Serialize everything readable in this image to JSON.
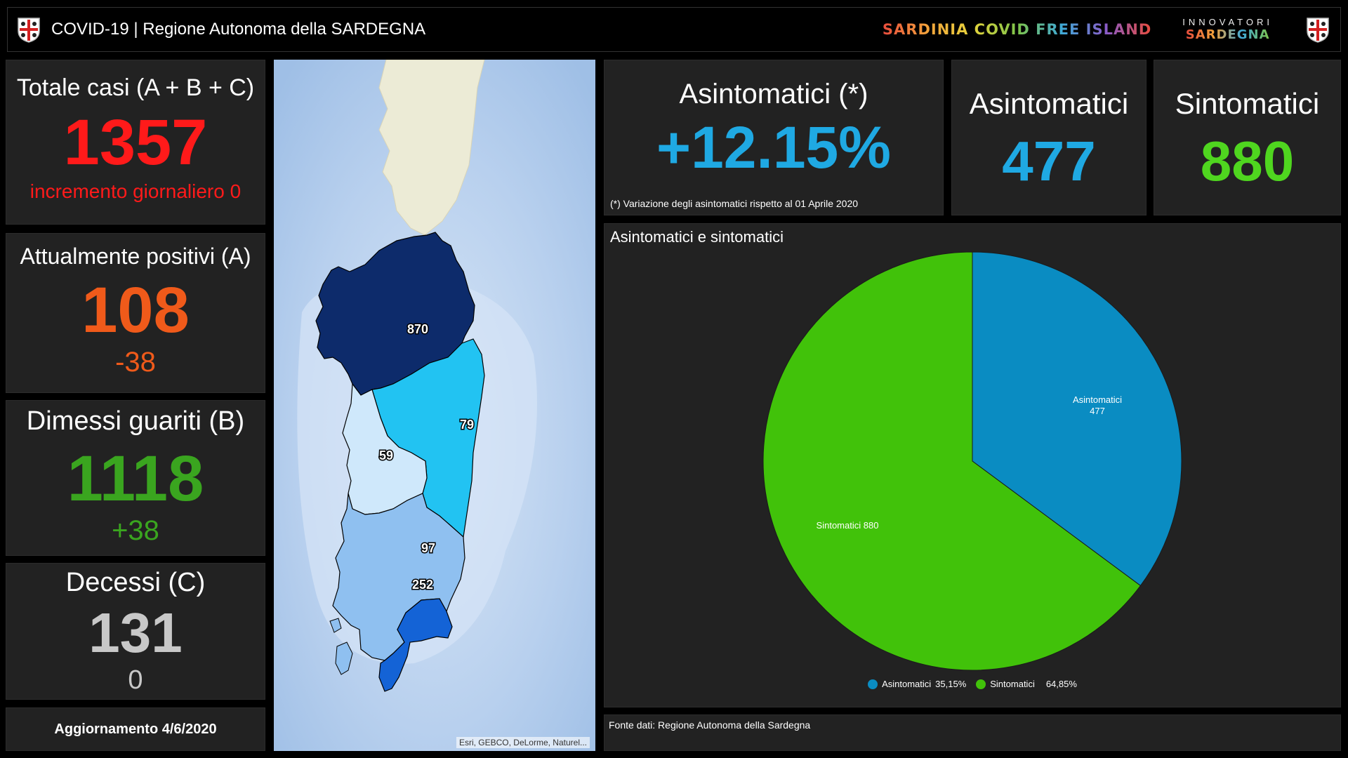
{
  "header": {
    "title": "COVID-19 | Regione Autonoma della SARDEGNA",
    "slogan": "SARDINIA COVID FREE ISLAND",
    "innovatori_line1": "INNOVATORI",
    "innovatori_line2": "SARDEGNA"
  },
  "stats": {
    "totale": {
      "label": "Totale casi (A + B + C)",
      "value": "1357",
      "sub": "incremento giornaliero 0",
      "color": "#ff1a1a"
    },
    "positivi": {
      "label": "Attualmente positivi (A)",
      "value": "108",
      "sub": "-38",
      "color": "#f05a1a"
    },
    "guariti": {
      "label": "Dimessi guariti (B)",
      "value": "1118",
      "sub": "+38",
      "color": "#3aa51f"
    },
    "decessi": {
      "label": "Decessi (C)",
      "value": "131",
      "sub": "0",
      "color": "#c8c8c8"
    }
  },
  "update": "Aggiornamento 4/6/2020",
  "map": {
    "attribution": "Esri, GEBCO, DeLorme, Naturel...",
    "regions": [
      {
        "label": "870",
        "color": "#0d2b6b"
      },
      {
        "label": "79",
        "color": "#22c3f2"
      },
      {
        "label": "59",
        "color": "#cfe8fb"
      },
      {
        "label": "97",
        "color": "#8fc0f0"
      },
      {
        "label": "252",
        "color": "#1463d6"
      }
    ]
  },
  "variation": {
    "title": "Asintomatici (*)",
    "value": "+12.15%",
    "note": "(*) Variazione degli asintomatici rispetto al 01 Aprile 2020"
  },
  "kpis": {
    "asintomatici": {
      "label": "Asintomatici",
      "value": "477",
      "color": "#1fa9e3"
    },
    "sintomatici": {
      "label": "Sintomatici",
      "value": "880",
      "color": "#4fd61f"
    }
  },
  "pie": {
    "title": "Asintomatici e sintomatici",
    "slice_asint_label": "Asintomatici",
    "slice_asint_value": "477",
    "slice_sint_label": "Sintomatici 880",
    "legend": [
      {
        "name": "Asintomatici",
        "pct": "35,15%",
        "color": "#0a8cc2"
      },
      {
        "name": "Sintomatici",
        "pct": "64,85%",
        "color": "#41c20a"
      }
    ]
  },
  "chart_data": {
    "type": "pie",
    "title": "Asintomatici e sintomatici",
    "categories": [
      "Asintomatici",
      "Sintomatici"
    ],
    "values": [
      477,
      880
    ],
    "percentages": [
      35.15,
      64.85
    ],
    "colors": [
      "#0a8cc2",
      "#41c20a"
    ],
    "legend_position": "bottom"
  },
  "footer": {
    "source": "Fonte dati: Regione Autonoma della Sardegna"
  }
}
